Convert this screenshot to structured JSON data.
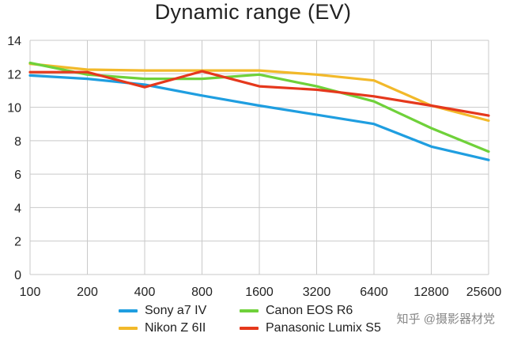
{
  "chart_data": {
    "type": "line",
    "title": "Dynamic range (EV)",
    "xlabel": "",
    "ylabel": "",
    "categories": [
      "100",
      "200",
      "400",
      "800",
      "1600",
      "3200",
      "6400",
      "12800",
      "25600"
    ],
    "ylim": [
      0,
      14
    ],
    "yticks": [
      0,
      2,
      4,
      6,
      8,
      10,
      12,
      14
    ],
    "grid": true,
    "legend_position": "bottom",
    "series": [
      {
        "name": "Sony a7 IV",
        "color": "#1f9ee0",
        "values": [
          11.9,
          11.7,
          11.35,
          10.7,
          10.1,
          9.55,
          9.0,
          7.65,
          6.85
        ]
      },
      {
        "name": "Nikon Z 6II",
        "color": "#f2b92a",
        "values": [
          12.6,
          12.25,
          12.2,
          12.2,
          12.2,
          11.95,
          11.6,
          10.1,
          9.2
        ]
      },
      {
        "name": "Canon EOS R6",
        "color": "#6fd13a",
        "values": [
          12.65,
          11.95,
          11.7,
          11.7,
          11.95,
          11.25,
          10.35,
          8.75,
          7.35
        ]
      },
      {
        "name": "Panasonic Lumix S5",
        "color": "#e5381c",
        "values": [
          12.1,
          12.1,
          11.2,
          12.15,
          11.25,
          11.05,
          10.65,
          10.1,
          9.5
        ]
      }
    ]
  },
  "watermark": "知乎 @摄影器材党"
}
